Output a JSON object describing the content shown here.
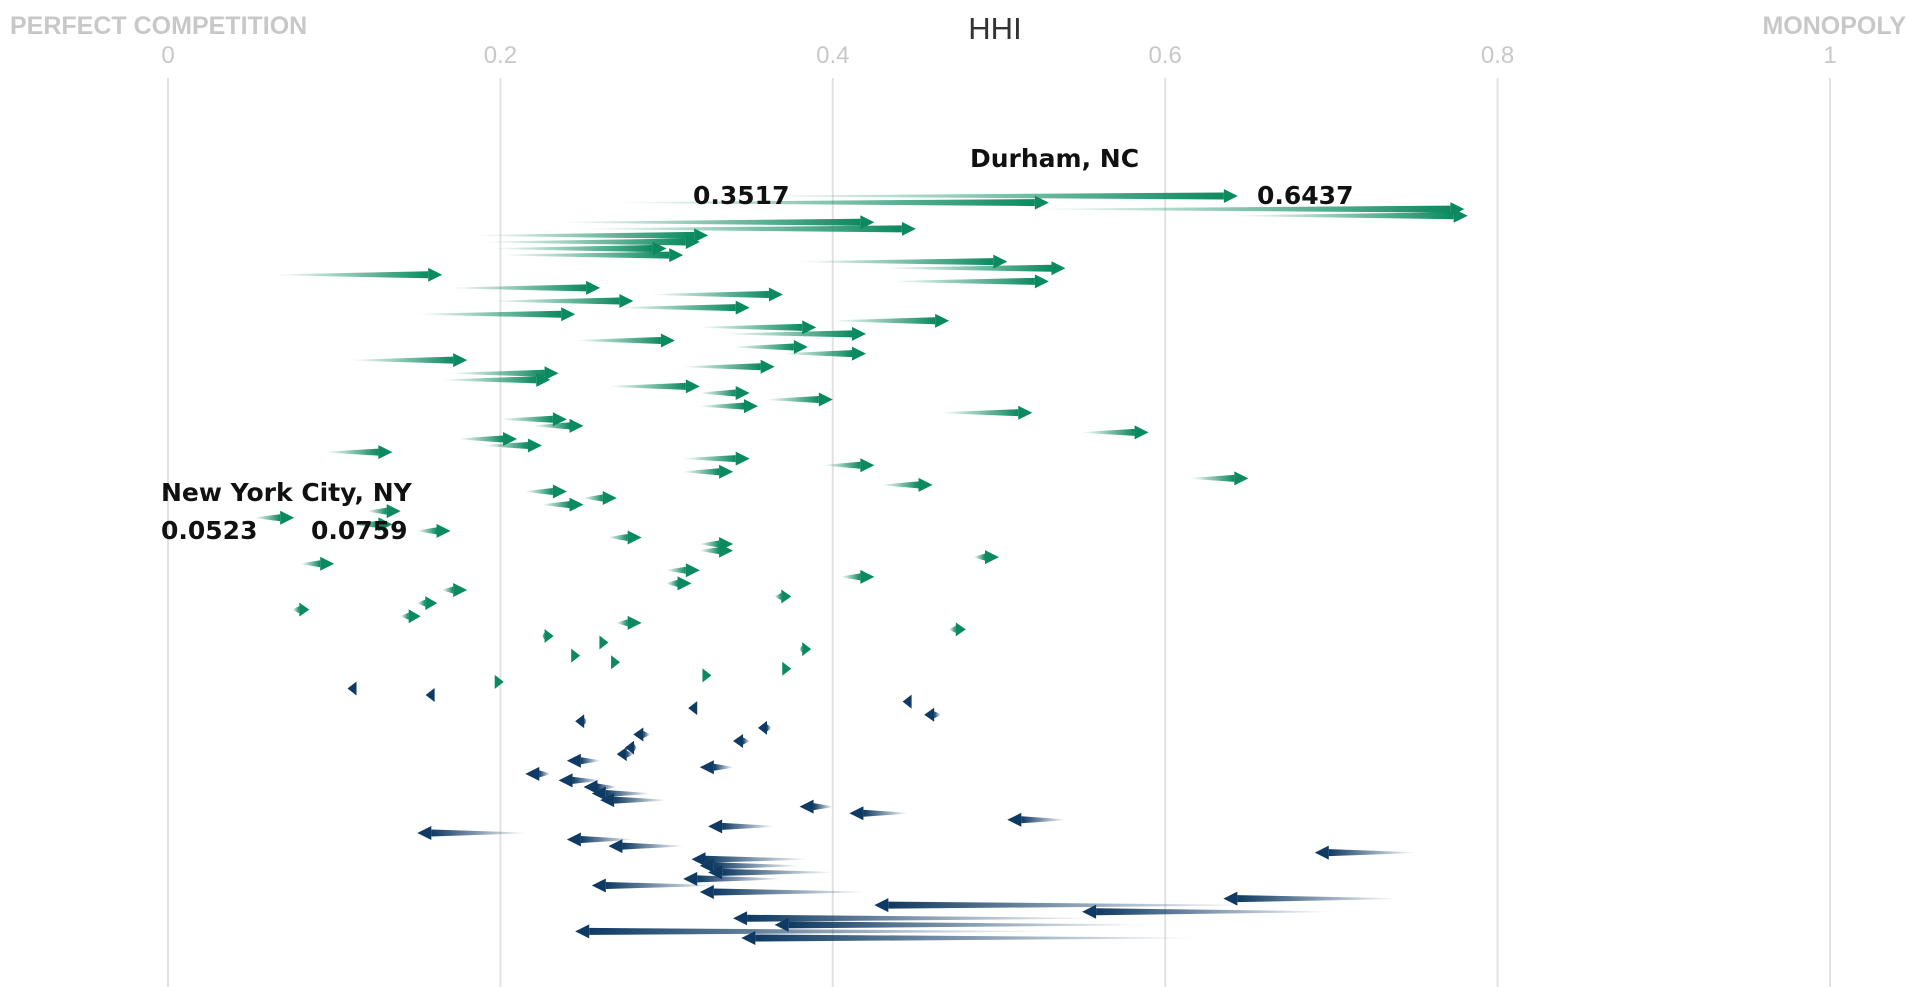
{
  "chart_data": {
    "type": "arrow",
    "title": "HHI",
    "left_label": "PERFECT COMPETITION",
    "right_label": "MONOPOLY",
    "xlim": [
      0,
      1
    ],
    "x_ticks": [
      "0",
      "0.2",
      "0.4",
      "0.6",
      "0.8",
      "1"
    ],
    "grid": "vertical",
    "colors": {
      "increase": "#0c8a5f",
      "decrease": "#0e3a63"
    },
    "annotations": [
      {
        "label": "Durham, NC",
        "from_label": "0.3517",
        "to_label": "0.6437"
      },
      {
        "label": "New York City, NY",
        "from_label": "0.0523",
        "to_label": "0.0759"
      }
    ],
    "arrows": [
      [
        0.3517,
        0.6437
      ],
      [
        0.27,
        0.53
      ],
      [
        0.52,
        0.78
      ],
      [
        0.64,
        0.782
      ],
      [
        0.235,
        0.425
      ],
      [
        0.25,
        0.45
      ],
      [
        0.185,
        0.325
      ],
      [
        0.19,
        0.32
      ],
      [
        0.195,
        0.3
      ],
      [
        0.2,
        0.31
      ],
      [
        0.38,
        0.505
      ],
      [
        0.43,
        0.54
      ],
      [
        0.065,
        0.165
      ],
      [
        0.435,
        0.53
      ],
      [
        0.17,
        0.26
      ],
      [
        0.29,
        0.37
      ],
      [
        0.195,
        0.28
      ],
      [
        0.27,
        0.35
      ],
      [
        0.15,
        0.245
      ],
      [
        0.4,
        0.47
      ],
      [
        0.32,
        0.39
      ],
      [
        0.335,
        0.42
      ],
      [
        0.245,
        0.305
      ],
      [
        0.34,
        0.385
      ],
      [
        0.37,
        0.42
      ],
      [
        0.11,
        0.18
      ],
      [
        0.31,
        0.365
      ],
      [
        0.17,
        0.235
      ],
      [
        0.165,
        0.23
      ],
      [
        0.265,
        0.32
      ],
      [
        0.32,
        0.35
      ],
      [
        0.36,
        0.4
      ],
      [
        0.32,
        0.355
      ],
      [
        0.465,
        0.52
      ],
      [
        0.2,
        0.24
      ],
      [
        0.22,
        0.25
      ],
      [
        0.55,
        0.59
      ],
      [
        0.175,
        0.21
      ],
      [
        0.19,
        0.225
      ],
      [
        0.095,
        0.135
      ],
      [
        0.31,
        0.35
      ],
      [
        0.395,
        0.425
      ],
      [
        0.31,
        0.34
      ],
      [
        0.615,
        0.65
      ],
      [
        0.43,
        0.46
      ],
      [
        0.215,
        0.24
      ],
      [
        0.25,
        0.27
      ],
      [
        0.225,
        0.25
      ],
      [
        0.12,
        0.14
      ],
      [
        0.0523,
        0.0759
      ],
      [
        0.11,
        0.135
      ],
      [
        0.15,
        0.17
      ],
      [
        0.265,
        0.285
      ],
      [
        0.32,
        0.34
      ],
      [
        0.32,
        0.34
      ],
      [
        0.485,
        0.5
      ],
      [
        0.08,
        0.1
      ],
      [
        0.3,
        0.32
      ],
      [
        0.405,
        0.425
      ],
      [
        0.3,
        0.315
      ],
      [
        0.165,
        0.18
      ],
      [
        0.365,
        0.375
      ],
      [
        0.15,
        0.162
      ],
      [
        0.075,
        0.085
      ],
      [
        0.14,
        0.152
      ],
      [
        0.27,
        0.285
      ],
      [
        0.47,
        0.48
      ],
      [
        0.225,
        0.232
      ],
      [
        0.26,
        0.265
      ],
      [
        0.38,
        0.387
      ],
      [
        0.243,
        0.248
      ],
      [
        0.268,
        0.272
      ],
      [
        0.37,
        0.375
      ],
      [
        0.323,
        0.327
      ],
      [
        0.197,
        0.202
      ],
      [
        0.112,
        0.108
      ],
      [
        0.158,
        0.155
      ],
      [
        0.447,
        0.442
      ],
      [
        0.318,
        0.313
      ],
      [
        0.465,
        0.455
      ],
      [
        0.252,
        0.245
      ],
      [
        0.363,
        0.355
      ],
      [
        0.29,
        0.28
      ],
      [
        0.35,
        0.34
      ],
      [
        0.282,
        0.275
      ],
      [
        0.28,
        0.27
      ],
      [
        0.26,
        0.24
      ],
      [
        0.34,
        0.32
      ],
      [
        0.23,
        0.215
      ],
      [
        0.26,
        0.235
      ],
      [
        0.27,
        0.25
      ],
      [
        0.29,
        0.255
      ],
      [
        0.3,
        0.26
      ],
      [
        0.4,
        0.38
      ],
      [
        0.445,
        0.41
      ],
      [
        0.54,
        0.505
      ],
      [
        0.365,
        0.325
      ],
      [
        0.215,
        0.15
      ],
      [
        0.28,
        0.24
      ],
      [
        0.31,
        0.265
      ],
      [
        0.75,
        0.69
      ],
      [
        0.385,
        0.315
      ],
      [
        0.38,
        0.32
      ],
      [
        0.4,
        0.325
      ],
      [
        0.37,
        0.31
      ],
      [
        0.33,
        0.255
      ],
      [
        0.42,
        0.32
      ],
      [
        0.74,
        0.635
      ],
      [
        0.65,
        0.425
      ],
      [
        0.7,
        0.55
      ],
      [
        0.56,
        0.34
      ],
      [
        0.59,
        0.365
      ],
      [
        0.53,
        0.245
      ],
      [
        0.62,
        0.345
      ]
    ]
  }
}
